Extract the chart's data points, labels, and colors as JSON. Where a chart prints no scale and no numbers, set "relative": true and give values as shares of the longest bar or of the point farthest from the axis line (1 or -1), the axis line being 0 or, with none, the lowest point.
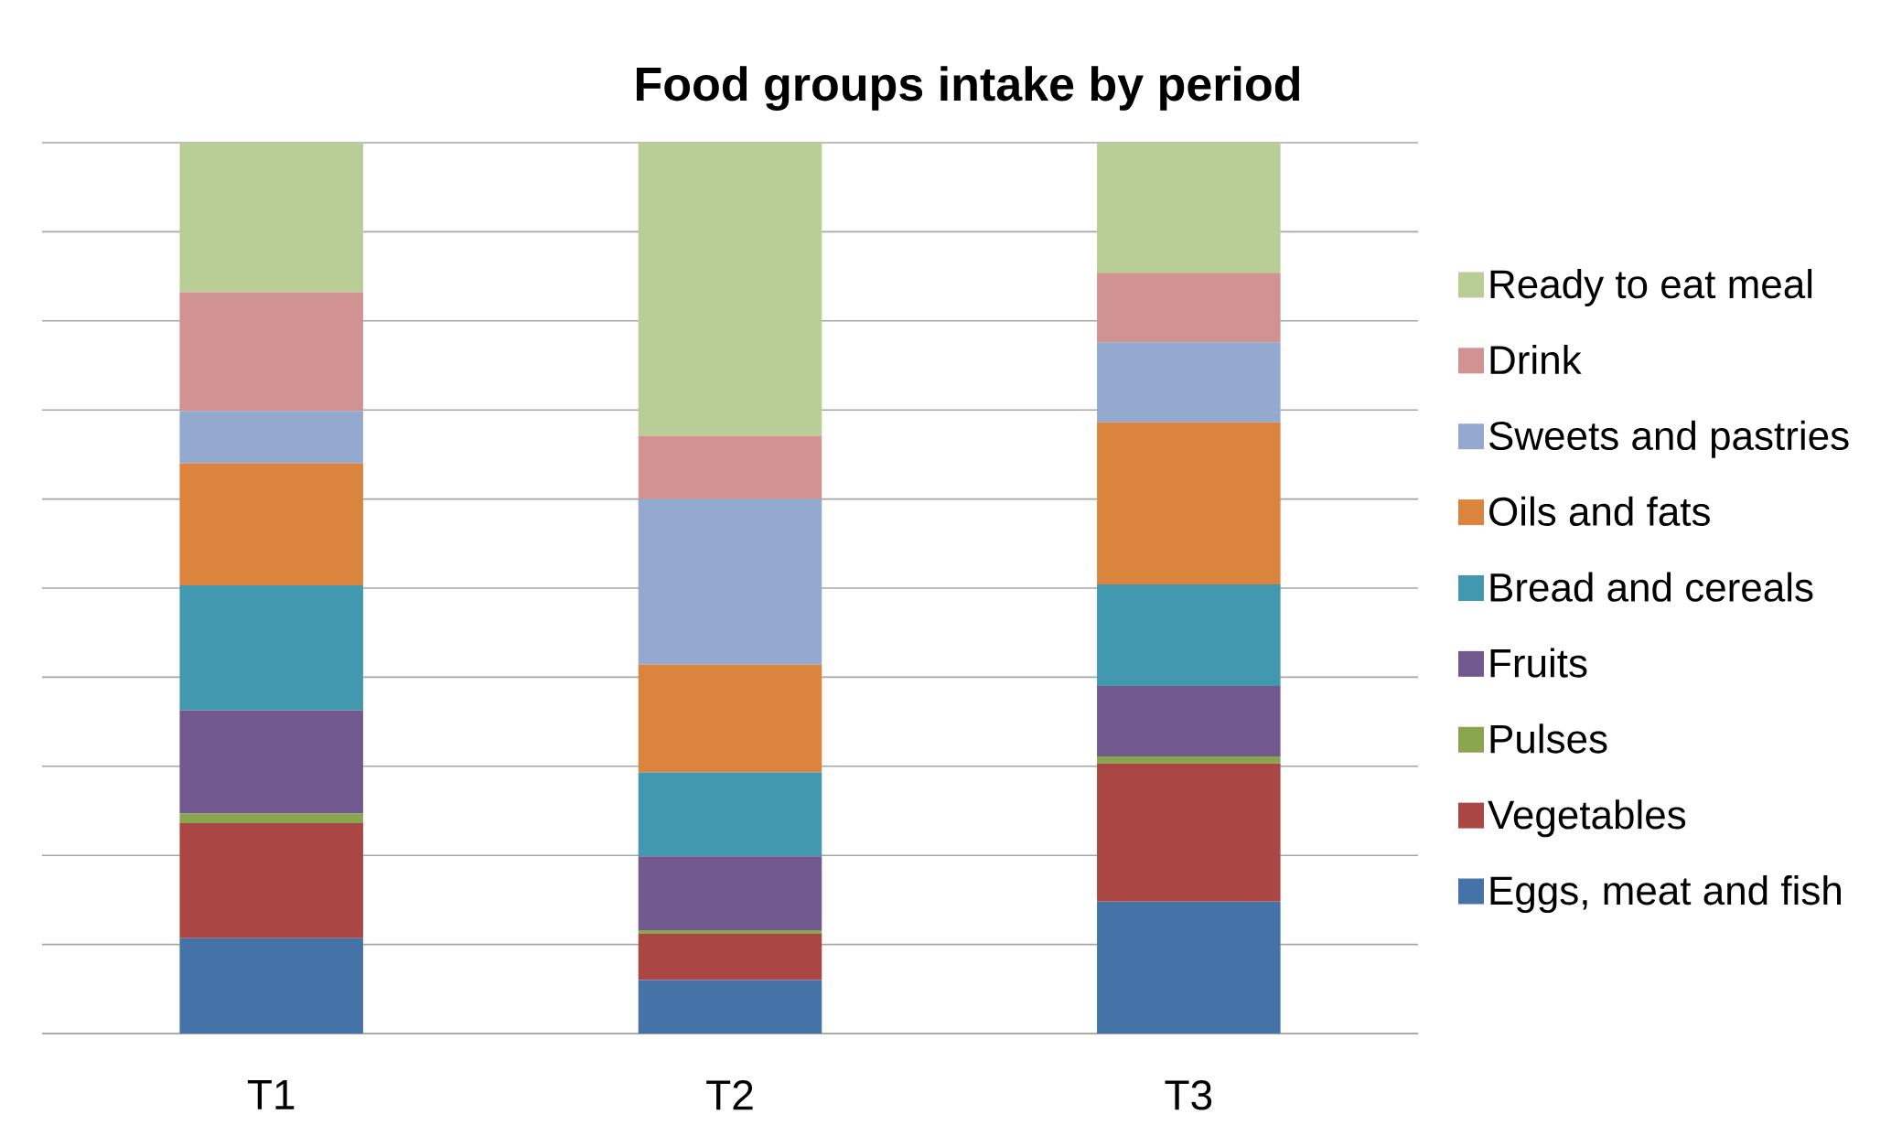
{
  "chart_data": {
    "type": "bar",
    "title": "Food groups intake by period",
    "categories": [
      "T1",
      "T2",
      "T3"
    ],
    "stacked": true,
    "relative": true,
    "grid": "y",
    "legend": "right",
    "series": [
      {
        "name": "Eggs, meat and fish",
        "color": "#4572a7",
        "values": [
          0.107,
          0.06,
          0.148
        ]
      },
      {
        "name": "Vegetables",
        "color": "#aa4643",
        "values": [
          0.129,
          0.052,
          0.155
        ]
      },
      {
        "name": "Pulses",
        "color": "#89a54e",
        "values": [
          0.011,
          0.004,
          0.008
        ]
      },
      {
        "name": "Fruits",
        "color": "#71588f",
        "values": [
          0.116,
          0.083,
          0.079
        ]
      },
      {
        "name": "Bread and cereals",
        "color": "#4198af",
        "values": [
          0.14,
          0.094,
          0.114
        ]
      },
      {
        "name": "Oils and fats",
        "color": "#db843d",
        "values": [
          0.137,
          0.121,
          0.182
        ]
      },
      {
        "name": "Sweets and pastries",
        "color": "#93a9cf",
        "values": [
          0.059,
          0.186,
          0.09
        ]
      },
      {
        "name": "Drink",
        "color": "#d19392",
        "values": [
          0.133,
          0.071,
          0.078
        ]
      },
      {
        "name": "Ready to eat meal",
        "color": "#b9cd96",
        "values": [
          0.168,
          0.329,
          0.146
        ]
      }
    ]
  }
}
